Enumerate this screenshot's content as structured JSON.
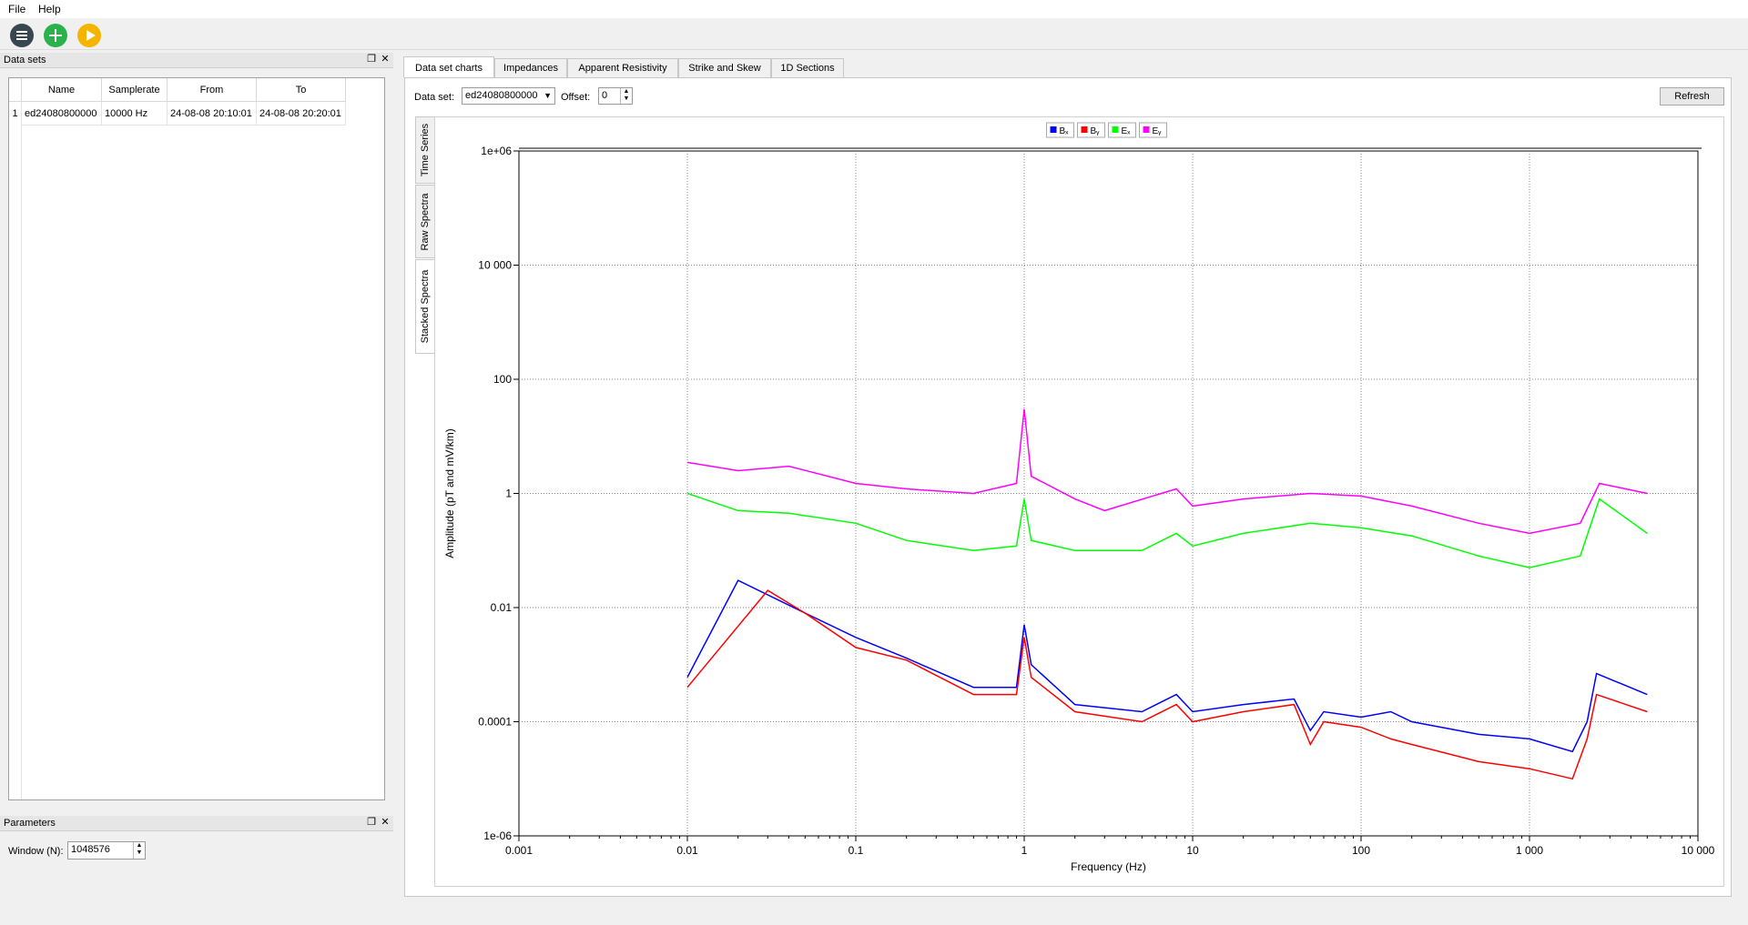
{
  "menu": [
    "File",
    "Help"
  ],
  "toolbar": {
    "icons": [
      "list-menu-icon",
      "add-icon",
      "play-icon"
    ],
    "colors": [
      "#37474f",
      "#2bb24c",
      "#f4b400"
    ]
  },
  "datasets_panel": {
    "title": "Data sets",
    "columns": [
      "Name",
      "Samplerate",
      "From",
      "To"
    ],
    "rows": [
      {
        "index": "1",
        "name": "ed24080800000",
        "samplerate": "10000 Hz",
        "from": "24-08-08 20:10:01",
        "to": "24-08-08 20:20:01"
      }
    ]
  },
  "parameters_panel": {
    "title": "Parameters",
    "window_label": "Window (N):",
    "window_value": "1048576"
  },
  "tabs": [
    "Data set charts",
    "Impedances",
    "Apparent Resistivity",
    "Strike and Skew",
    "1D Sections"
  ],
  "side_tabs": [
    "Time Series",
    "Raw Spectra",
    "Stacked Spectra"
  ],
  "controls": {
    "dataset_label": "Data set:",
    "dataset_value": "ed24080800000",
    "offset_label": "Offset:",
    "offset_value": "0",
    "refresh_label": "Refresh"
  },
  "chart_data": {
    "type": "line",
    "x_scale": "log",
    "y_scale": "log",
    "xlim": [
      0.001,
      10000
    ],
    "ylim": [
      1e-06,
      1000000
    ],
    "x_ticks": [
      0.001,
      0.01,
      0.1,
      1,
      10,
      100,
      1000,
      10000
    ],
    "x_tick_labels": [
      "0.001",
      "0.01",
      "0.1",
      "1",
      "10",
      "100",
      "1 000",
      "10 000"
    ],
    "y_ticks": [
      1e-06,
      0.0001,
      0.01,
      1,
      100,
      10000,
      1000000
    ],
    "y_tick_labels": [
      "1e-06",
      "0.0001",
      "0.01",
      "1",
      "100",
      "10 000",
      "1e+06"
    ],
    "xlabel": "Frequency (Hz)",
    "ylabel": "Amplitude (pT and mV/km)",
    "grid": true,
    "legend_position": "top-center",
    "series": [
      {
        "name": "Bₓ",
        "color": "#0000ff",
        "x": [
          0.01,
          0.02,
          0.05,
          0.1,
          0.2,
          0.5,
          0.9,
          1,
          1.1,
          2,
          5,
          8,
          10,
          20,
          40,
          50,
          60,
          100,
          150,
          200,
          500,
          1000,
          1800,
          2200,
          2500,
          5000
        ],
        "y": [
          0.0006,
          0.03,
          0.008,
          0.003,
          0.0013,
          0.0004,
          0.0004,
          0.005,
          0.001,
          0.0002,
          0.00015,
          0.0003,
          0.00015,
          0.0002,
          0.00025,
          7e-05,
          0.00015,
          0.00012,
          0.00015,
          0.0001,
          6e-05,
          5e-05,
          3e-05,
          0.0001,
          0.0007,
          0.0003
        ]
      },
      {
        "name": "Bᵧ",
        "color": "#ff0000",
        "x": [
          0.01,
          0.03,
          0.05,
          0.1,
          0.2,
          0.5,
          0.9,
          1,
          1.1,
          2,
          5,
          8,
          10,
          20,
          40,
          50,
          60,
          100,
          150,
          200,
          500,
          1000,
          1800,
          2200,
          2500,
          5000
        ],
        "y": [
          0.0004,
          0.02,
          0.008,
          0.002,
          0.0012,
          0.0003,
          0.0003,
          0.003,
          0.0006,
          0.00015,
          0.0001,
          0.0002,
          0.0001,
          0.00015,
          0.0002,
          4e-05,
          0.0001,
          8e-05,
          5e-05,
          4e-05,
          2e-05,
          1.5e-05,
          1e-05,
          5e-05,
          0.0003,
          0.00015
        ]
      },
      {
        "name": "Eₓ",
        "color": "#00ff00",
        "x": [
          0.01,
          0.02,
          0.04,
          0.1,
          0.2,
          0.5,
          0.9,
          1,
          1.1,
          2,
          5,
          8,
          10,
          20,
          50,
          100,
          200,
          500,
          1000,
          2000,
          2600,
          5000
        ],
        "y": [
          1,
          0.5,
          0.45,
          0.3,
          0.15,
          0.1,
          0.12,
          0.8,
          0.15,
          0.1,
          0.1,
          0.2,
          0.12,
          0.2,
          0.3,
          0.25,
          0.18,
          0.08,
          0.05,
          0.08,
          0.8,
          0.2
        ]
      },
      {
        "name": "Eᵧ",
        "color": "#ff00ff",
        "x": [
          0.01,
          0.02,
          0.04,
          0.1,
          0.2,
          0.5,
          0.9,
          1,
          1.1,
          2,
          3,
          8,
          10,
          20,
          50,
          100,
          200,
          500,
          1000,
          2000,
          2600,
          5000
        ],
        "y": [
          3.5,
          2.5,
          3,
          1.5,
          1.2,
          1,
          1.5,
          30,
          2,
          0.8,
          0.5,
          1.2,
          0.6,
          0.8,
          1,
          0.9,
          0.6,
          0.3,
          0.2,
          0.3,
          1.5,
          1
        ]
      }
    ]
  }
}
